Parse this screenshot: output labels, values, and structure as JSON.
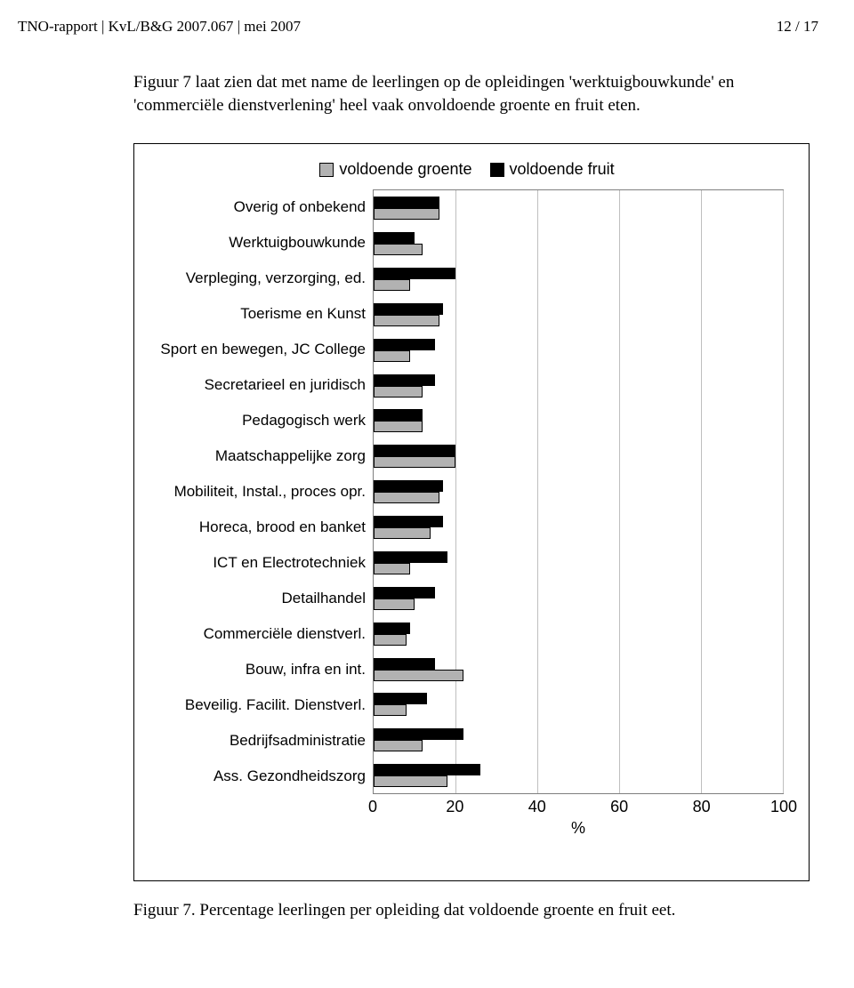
{
  "header": {
    "left": "TNO-rapport | KvL/B&G 2007.067 | mei 2007",
    "right": "12 / 17"
  },
  "intro": "Figuur 7 laat zien dat met name de leerlingen op de opleidingen 'werktuigbouwkunde' en 'commerciële dienstverlening' heel vaak onvoldoende groente en fruit eten.",
  "chart": {
    "legend": [
      {
        "swatch": "gray",
        "label": "voldoende groente"
      },
      {
        "swatch": "black",
        "label": "voldoende fruit"
      }
    ],
    "categories": [
      "Overig of onbekend",
      "Werktuigbouwkunde",
      "Verpleging, verzorging, ed.",
      "Toerisme en Kunst",
      "Sport en bewegen, JC College",
      "Secretarieel en juridisch",
      "Pedagogisch werk",
      "Maatschappelijke zorg",
      "Mobiliteit, Instal., proces opr.",
      "Horeca, brood en banket",
      "ICT en Electrotechniek",
      "Detailhandel",
      "Commerciële dienstverl.",
      "Bouw, infra en int.",
      "Beveilig. Facilit. Dienstverl.",
      "Bedrijfsadministratie",
      "Ass. Gezondheidszorg"
    ],
    "series_fruit": [
      16,
      10,
      20,
      17,
      15,
      15,
      12,
      20,
      17,
      17,
      18,
      15,
      9,
      15,
      13,
      22,
      26
    ],
    "series_groente": [
      16,
      12,
      9,
      16,
      9,
      12,
      12,
      20,
      16,
      14,
      9,
      10,
      8,
      22,
      8,
      12,
      18
    ],
    "xlim": [
      0,
      100
    ],
    "xticks": [
      0,
      20,
      40,
      60,
      80,
      100
    ],
    "xlabel": "%",
    "bar_colors": {
      "black": "#000000",
      "gray": "#b2b2b2"
    },
    "bar_border": "#000000",
    "grid_color": "#bfbfbf",
    "plot_border": "#7f7f7f"
  },
  "caption": "Figuur 7. Percentage leerlingen per opleiding dat voldoende groente en fruit eet."
}
